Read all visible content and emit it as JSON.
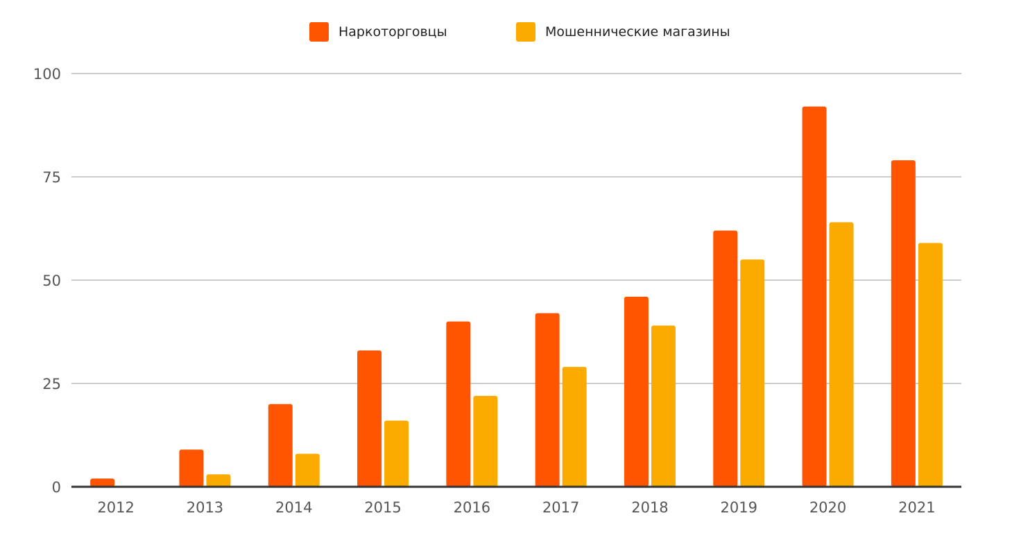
{
  "colors": {
    "series_1": "#FF5500",
    "series_2": "#FBAA00",
    "grid": "#cccccc",
    "baseline": "#333333"
  },
  "chart_data": {
    "type": "bar",
    "title": "",
    "xlabel": "",
    "ylabel": "",
    "categories": [
      "2012",
      "2013",
      "2014",
      "2015",
      "2016",
      "2017",
      "2018",
      "2019",
      "2020",
      "2021"
    ],
    "series": [
      {
        "name": "Наркоторговцы",
        "color": "#FF5500",
        "values": [
          2,
          9,
          20,
          33,
          40,
          42,
          46,
          62,
          92,
          79
        ]
      },
      {
        "name": "Мошеннические магазины",
        "color": "#FBAA00",
        "values": [
          0,
          3,
          8,
          16,
          22,
          29,
          39,
          55,
          64,
          59
        ]
      }
    ],
    "ylim": [
      0,
      100
    ],
    "yticks": [
      "0",
      "25",
      "50",
      "75",
      "100"
    ],
    "grid": true,
    "legend_position": "top-center"
  }
}
